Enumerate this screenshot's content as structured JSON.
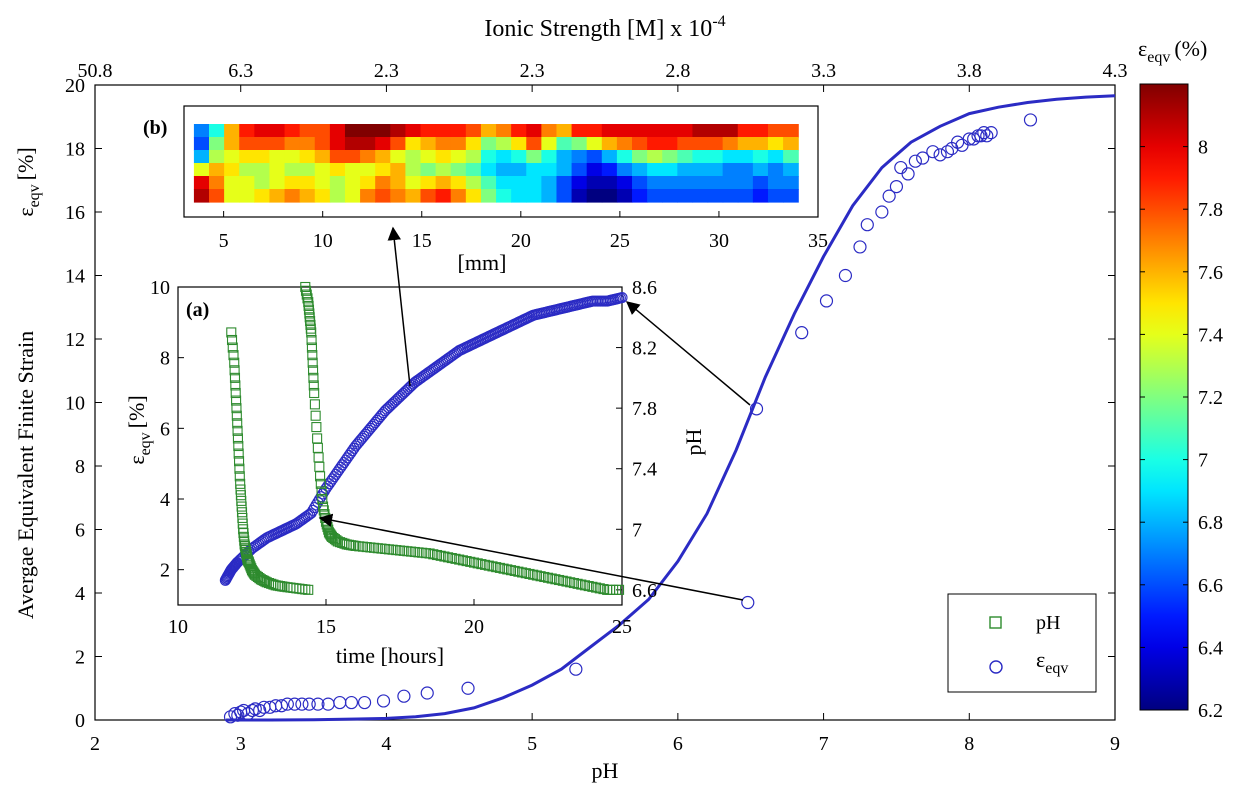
{
  "chart_data": [
    {
      "id": "main",
      "type": "scatter",
      "xlabel": "pH",
      "ylabel": "Avergae Equivalent Finite Strain",
      "ylabel_symbol": {
        "base": "ε",
        "sub": "eqv",
        "unit": "[%]"
      },
      "xlim": [
        2,
        9
      ],
      "ylim": [
        0,
        20
      ],
      "xticks": [
        2,
        3,
        4,
        5,
        6,
        7,
        8,
        9
      ],
      "yticks": [
        0,
        2,
        4,
        6,
        8,
        10,
        12,
        14,
        16,
        18,
        20
      ],
      "top_axis": {
        "label": {
          "base": "Ionic Strength [M] x 10",
          "sup": "-4"
        },
        "ticks": [
          "50.8",
          "6.3",
          "2.3",
          "2.3",
          "2.8",
          "3.3",
          "3.8",
          "4.3"
        ]
      },
      "legend": {
        "placement": "bottom-right",
        "entries": [
          {
            "label": "pH",
            "marker": "square",
            "color": "#2e8b2e"
          },
          {
            "label": {
              "base": "ε",
              "sub": "eqv"
            },
            "marker": "circle",
            "color": "#2b2bc4"
          }
        ]
      },
      "series": [
        {
          "kind": "points",
          "marker": "circle",
          "color": "#2b2bc4",
          "x": [
            2.93,
            2.96,
            2.98,
            3.0,
            3.02,
            3.05,
            3.08,
            3.1,
            3.13,
            3.16,
            3.2,
            3.24,
            3.28,
            3.32,
            3.37,
            3.42,
            3.47,
            3.53,
            3.6,
            3.68,
            3.76,
            3.85,
            3.98,
            4.12,
            4.28,
            4.56,
            5.3,
            6.48,
            6.54,
            6.85,
            7.02,
            7.15,
            7.25,
            7.3,
            7.4,
            7.45,
            7.5,
            7.53,
            7.58,
            7.63,
            7.68,
            7.75,
            7.8,
            7.85,
            7.88,
            7.92,
            7.95,
            8.0,
            8.03,
            8.06,
            8.08,
            8.1,
            8.12,
            8.15,
            8.42
          ],
          "y": [
            0.1,
            0.2,
            0.15,
            0.25,
            0.3,
            0.2,
            0.3,
            0.35,
            0.3,
            0.4,
            0.4,
            0.45,
            0.45,
            0.5,
            0.5,
            0.5,
            0.5,
            0.5,
            0.5,
            0.55,
            0.55,
            0.55,
            0.6,
            0.75,
            0.85,
            1.0,
            1.6,
            3.7,
            9.8,
            12.2,
            13.2,
            14.0,
            14.9,
            15.6,
            16.0,
            16.5,
            16.8,
            17.4,
            17.2,
            17.6,
            17.7,
            17.9,
            17.8,
            17.9,
            18.0,
            18.2,
            18.1,
            18.3,
            18.3,
            18.4,
            18.4,
            18.5,
            18.4,
            18.5,
            18.9
          ]
        },
        {
          "kind": "fit-line",
          "color": "#2b2bc4",
          "x": [
            2.9,
            3.2,
            3.5,
            3.8,
            4.0,
            4.2,
            4.4,
            4.6,
            4.8,
            5.0,
            5.2,
            5.4,
            5.6,
            5.8,
            6.0,
            6.2,
            6.4,
            6.6,
            6.8,
            7.0,
            7.2,
            7.4,
            7.6,
            7.8,
            8.0,
            8.2,
            8.4,
            8.6,
            8.8,
            9.0
          ],
          "y": [
            0.0,
            0.0,
            0.01,
            0.03,
            0.05,
            0.1,
            0.2,
            0.38,
            0.7,
            1.1,
            1.6,
            2.3,
            3.0,
            3.8,
            5.0,
            6.5,
            8.5,
            10.8,
            12.8,
            14.6,
            16.2,
            17.4,
            18.2,
            18.7,
            19.1,
            19.3,
            19.45,
            19.55,
            19.62,
            19.66
          ]
        }
      ]
    },
    {
      "id": "inset-a",
      "panel_label": "(a)",
      "type": "scatter",
      "xlabel": "time [hours]",
      "ylabel": {
        "base": "ε",
        "sub": "eqv",
        "unit": "[%]"
      },
      "y2label": "pH",
      "xlim": [
        10,
        25
      ],
      "ylim": [
        1,
        10
      ],
      "y2lim": [
        6.5,
        8.6
      ],
      "xticks": [
        10,
        15,
        20,
        25
      ],
      "yticks": [
        2,
        4,
        6,
        8,
        10
      ],
      "y2ticks": [
        6.6,
        7.0,
        7.4,
        7.8,
        8.2,
        8.6
      ],
      "y2tick_labels": [
        "6.6",
        "7",
        "7.4",
        "7.8",
        "8.2",
        "8.6"
      ],
      "series": [
        {
          "name": "pH",
          "marker": "square",
          "color": "#2e8b2e",
          "axis": "right",
          "segments": [
            {
              "x": [
                11.8,
                11.9,
                11.95,
                12.0,
                12.05,
                12.1,
                12.15,
                12.2,
                12.25,
                12.3,
                12.35,
                12.4,
                12.5,
                12.6,
                12.8,
                13.0,
                13.3,
                13.6,
                14.0,
                14.4
              ],
              "y": [
                8.3,
                8.1,
                7.9,
                7.7,
                7.5,
                7.3,
                7.15,
                7.0,
                6.9,
                6.85,
                6.8,
                6.78,
                6.73,
                6.7,
                6.67,
                6.65,
                6.63,
                6.62,
                6.61,
                6.6
              ]
            },
            {
              "x": [
                14.3,
                14.4,
                14.45,
                14.5,
                14.55,
                14.6,
                14.7,
                14.8,
                14.9,
                15.0,
                15.1,
                15.2,
                15.4,
                15.7,
                16.0,
                16.5,
                17.0,
                17.5,
                18.0,
                18.5,
                19.0,
                19.5,
                20.0,
                20.5,
                21.0,
                21.5,
                22.0,
                22.5,
                23.0,
                23.5,
                24.0,
                24.5,
                24.9
              ],
              "y": [
                8.6,
                8.5,
                8.4,
                8.3,
                8.1,
                7.9,
                7.6,
                7.35,
                7.15,
                7.05,
                6.98,
                6.95,
                6.92,
                6.9,
                6.89,
                6.88,
                6.87,
                6.86,
                6.85,
                6.84,
                6.82,
                6.8,
                6.78,
                6.76,
                6.74,
                6.72,
                6.7,
                6.68,
                6.66,
                6.64,
                6.62,
                6.6,
                6.6
              ]
            }
          ]
        },
        {
          "name": "ε",
          "marker": "circle",
          "color": "#2b2bc4",
          "axis": "left",
          "x": [
            11.6,
            11.8,
            12.0,
            12.5,
            13.0,
            13.5,
            14.0,
            14.5,
            15.0,
            15.5,
            16.0,
            16.5,
            17.0,
            17.5,
            18.0,
            18.5,
            19.0,
            19.5,
            20.0,
            20.5,
            21.0,
            21.5,
            22.0,
            22.5,
            23.0,
            23.5,
            24.0,
            24.5,
            25.0
          ],
          "y": [
            1.7,
            2.0,
            2.2,
            2.6,
            2.9,
            3.1,
            3.3,
            3.6,
            4.3,
            4.9,
            5.5,
            6.0,
            6.5,
            6.9,
            7.3,
            7.6,
            7.9,
            8.2,
            8.4,
            8.6,
            8.8,
            9.0,
            9.2,
            9.3,
            9.4,
            9.5,
            9.6,
            9.6,
            9.7
          ]
        }
      ]
    },
    {
      "id": "inset-b",
      "panel_label": "(b)",
      "type": "heatmap",
      "xlabel": "[mm]",
      "xlim": [
        3,
        35
      ],
      "xticks": [
        5,
        10,
        15,
        20,
        25,
        30,
        35
      ],
      "data_x_range": [
        3.5,
        34.0
      ],
      "rows_top_to_bottom": [
        [
          6.7,
          7.0,
          7.6,
          7.9,
          8.0,
          8.0,
          7.9,
          7.8,
          7.8,
          8.0,
          8.2,
          8.2,
          8.2,
          8.1,
          8.0,
          7.9,
          7.9,
          7.9,
          7.8,
          7.6,
          7.7,
          7.9,
          8.0,
          7.7,
          7.6,
          7.9,
          7.9,
          8.0,
          8.0,
          8.0,
          8.0,
          8.0,
          8.0,
          8.1,
          8.1,
          8.1,
          7.9,
          7.9,
          7.8,
          7.8
        ],
        [
          6.6,
          7.2,
          7.6,
          7.8,
          7.8,
          7.8,
          7.7,
          7.7,
          7.8,
          8.0,
          8.1,
          8.1,
          8.0,
          7.8,
          7.5,
          7.6,
          7.7,
          7.7,
          7.5,
          7.2,
          7.3,
          7.5,
          7.8,
          7.4,
          7.1,
          7.2,
          7.4,
          7.6,
          7.7,
          7.8,
          7.9,
          7.9,
          7.8,
          7.8,
          7.8,
          7.7,
          7.6,
          7.6,
          7.5,
          7.6
        ],
        [
          6.8,
          7.3,
          7.4,
          7.5,
          7.5,
          7.4,
          7.4,
          7.5,
          7.6,
          7.8,
          7.8,
          7.7,
          7.6,
          7.4,
          7.3,
          7.4,
          7.5,
          7.4,
          7.3,
          7.0,
          6.9,
          7.0,
          7.2,
          7.0,
          6.8,
          6.7,
          6.6,
          6.8,
          7.0,
          7.2,
          7.3,
          7.2,
          7.1,
          7.0,
          7.0,
          6.9,
          6.9,
          7.0,
          6.9,
          7.1
        ],
        [
          7.4,
          7.6,
          7.5,
          7.3,
          7.3,
          7.4,
          7.3,
          7.3,
          7.4,
          7.5,
          7.4,
          7.4,
          7.5,
          7.6,
          7.3,
          7.2,
          7.3,
          7.2,
          7.1,
          6.9,
          6.8,
          6.8,
          6.9,
          6.9,
          6.8,
          6.6,
          6.4,
          6.5,
          6.7,
          6.8,
          6.9,
          6.9,
          6.8,
          6.8,
          6.8,
          6.7,
          6.7,
          6.8,
          6.7,
          6.8
        ],
        [
          8.0,
          7.7,
          7.4,
          7.4,
          7.3,
          7.4,
          7.5,
          7.5,
          7.4,
          7.3,
          7.4,
          7.5,
          7.7,
          7.6,
          7.4,
          7.5,
          7.6,
          7.5,
          7.3,
          7.1,
          6.9,
          6.9,
          6.9,
          6.8,
          6.6,
          6.4,
          6.3,
          6.3,
          6.4,
          6.6,
          6.7,
          6.7,
          6.7,
          6.7,
          6.7,
          6.7,
          6.7,
          6.6,
          6.7,
          6.7
        ],
        [
          8.1,
          7.8,
          7.4,
          7.4,
          7.5,
          7.6,
          7.7,
          7.6,
          7.5,
          7.3,
          7.4,
          7.7,
          7.8,
          7.7,
          7.6,
          7.8,
          7.9,
          7.7,
          7.5,
          7.2,
          7.0,
          6.9,
          6.9,
          6.8,
          6.6,
          6.3,
          6.2,
          6.2,
          6.3,
          6.5,
          6.6,
          6.6,
          6.6,
          6.6,
          6.6,
          6.6,
          6.6,
          6.5,
          6.6,
          6.6
        ]
      ]
    },
    {
      "id": "colorbar",
      "type": "colorbar",
      "label": {
        "base": "ε",
        "sub": "eqv",
        "unit": "(%)"
      },
      "clim": [
        6.2,
        8.2
      ],
      "ticks": [
        6.2,
        6.4,
        6.6,
        6.8,
        7.0,
        7.2,
        7.4,
        7.6,
        7.8,
        8.0
      ],
      "tick_labels": [
        "6.2",
        "6.4",
        "6.6",
        "6.8",
        "7",
        "7.2",
        "7.4",
        "7.6",
        "7.8",
        "8"
      ],
      "colormap": "jet"
    }
  ]
}
